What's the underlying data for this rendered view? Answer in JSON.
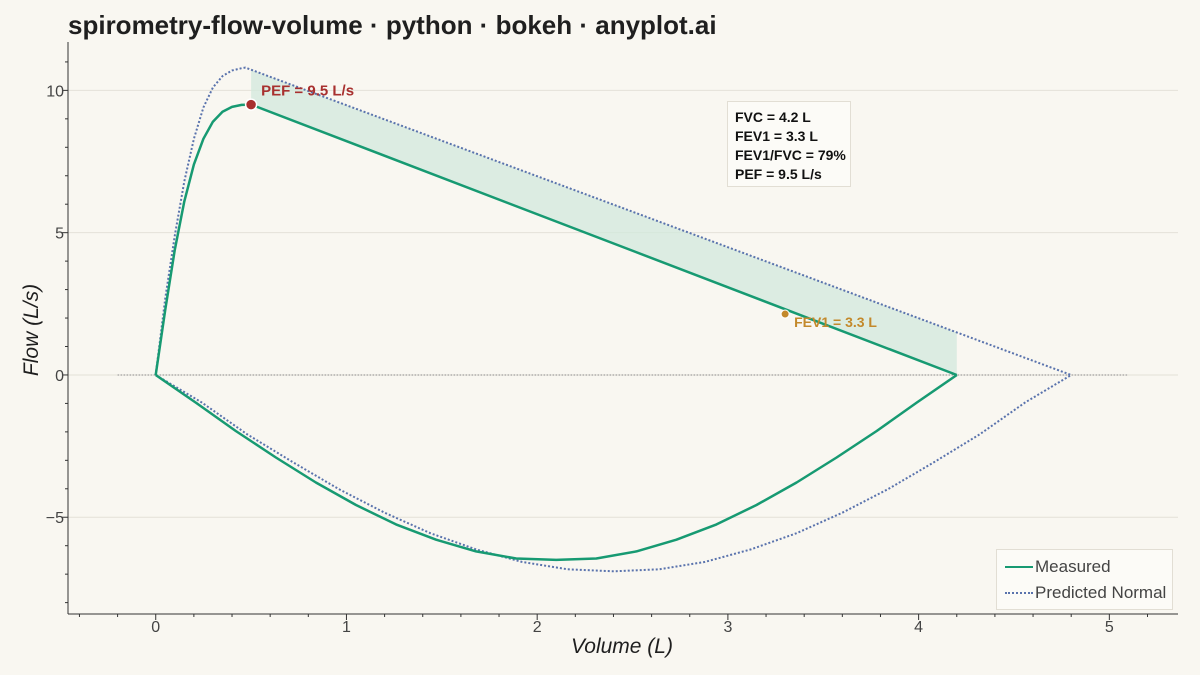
{
  "title": "spirometry-flow-volume · python · bokeh · anyplot.ai",
  "colors": {
    "measured": "#179a72",
    "predicted": "#5a73ad",
    "fill": "#d2e8dc",
    "pef": "#a8302f",
    "fev1": "#c3892b",
    "grid": "#e4e1d8",
    "background": "#f9f7f1"
  },
  "stats": {
    "fvc": "FVC = 4.2 L",
    "fev1": "FEV1 = 3.3 L",
    "ratio": "FEV1/FVC = 79%",
    "pef": "PEF = 9.5 L/s"
  },
  "annotations": {
    "pef_label": "PEF = 9.5 L/s",
    "fev1_label": "FEV1 = 3.3 L"
  },
  "legend": {
    "measured": "Measured",
    "predicted": "Predicted Normal",
    "position": "bottom-right"
  },
  "chart_data": {
    "type": "line",
    "xlabel": "Volume (L)",
    "ylabel": "Flow (L/s)",
    "xlim": [
      -0.46,
      5.36
    ],
    "ylim": [
      -8.4,
      11.7
    ],
    "xticks": [
      0,
      1,
      2,
      3,
      4,
      5
    ],
    "yticks": [
      -5,
      0,
      5,
      10
    ],
    "x_tick_labels": [
      "0",
      "1",
      "2",
      "3",
      "4",
      "5"
    ],
    "y_tick_labels": [
      "−5",
      "0",
      "5",
      "10"
    ],
    "grid": "horizontal",
    "legend_position": "bottom-right",
    "series": [
      {
        "name": "Measured",
        "expiratory": [
          [
            0,
            0
          ],
          [
            0.05,
            2.3
          ],
          [
            0.1,
            4.4
          ],
          [
            0.15,
            6.1
          ],
          [
            0.2,
            7.4
          ],
          [
            0.25,
            8.3
          ],
          [
            0.3,
            8.9
          ],
          [
            0.35,
            9.25
          ],
          [
            0.4,
            9.42
          ],
          [
            0.45,
            9.49
          ],
          [
            0.5,
            9.5
          ],
          [
            4.2,
            0
          ]
        ],
        "inspiratory": [
          [
            0,
            0
          ],
          [
            0.21,
            -0.97
          ],
          [
            0.42,
            -1.97
          ],
          [
            0.63,
            -2.9
          ],
          [
            0.84,
            -3.78
          ],
          [
            1.05,
            -4.57
          ],
          [
            1.26,
            -5.25
          ],
          [
            1.47,
            -5.79
          ],
          [
            1.68,
            -6.2
          ],
          [
            1.89,
            -6.45
          ],
          [
            2.1,
            -6.5
          ],
          [
            2.31,
            -6.45
          ],
          [
            2.52,
            -6.2
          ],
          [
            2.73,
            -5.79
          ],
          [
            2.94,
            -5.25
          ],
          [
            3.15,
            -4.57
          ],
          [
            3.36,
            -3.78
          ],
          [
            3.57,
            -2.9
          ],
          [
            3.78,
            -1.97
          ],
          [
            3.99,
            -0.97
          ],
          [
            4.2,
            0
          ]
        ]
      },
      {
        "name": "Predicted Normal",
        "expiratory": [
          [
            0,
            0
          ],
          [
            0.05,
            2.7
          ],
          [
            0.1,
            4.9
          ],
          [
            0.15,
            6.8
          ],
          [
            0.2,
            8.3
          ],
          [
            0.25,
            9.4
          ],
          [
            0.3,
            10.1
          ],
          [
            0.35,
            10.5
          ],
          [
            0.4,
            10.7
          ],
          [
            0.45,
            10.78
          ],
          [
            0.47,
            10.8
          ],
          [
            4.8,
            0
          ]
        ],
        "inspiratory": [
          [
            0,
            0
          ],
          [
            0.24,
            -0.96
          ],
          [
            0.48,
            -2.09
          ],
          [
            0.72,
            -3.07
          ],
          [
            0.96,
            -4.01
          ],
          [
            1.2,
            -4.84
          ],
          [
            1.44,
            -5.56
          ],
          [
            1.68,
            -6.13
          ],
          [
            1.92,
            -6.57
          ],
          [
            2.16,
            -6.83
          ],
          [
            2.4,
            -6.9
          ],
          [
            2.64,
            -6.83
          ],
          [
            2.88,
            -6.57
          ],
          [
            3.12,
            -6.13
          ],
          [
            3.36,
            -5.56
          ],
          [
            3.6,
            -4.84
          ],
          [
            3.84,
            -4.01
          ],
          [
            4.08,
            -3.07
          ],
          [
            4.32,
            -2.09
          ],
          [
            4.56,
            -0.96
          ],
          [
            4.8,
            0
          ]
        ]
      }
    ],
    "shaded_region": {
      "x_from": 0.5,
      "x_to": 4.2,
      "between": "Predicted Normal and Measured expiratory"
    },
    "points": [
      {
        "name": "PEF",
        "x": 0.5,
        "y": 9.5,
        "label": "PEF = 9.5 L/s"
      },
      {
        "name": "FEV1",
        "x": 3.3,
        "y": 2.14,
        "label": "FEV1 = 3.3 L"
      }
    ],
    "zero_line": {
      "y": 0,
      "x_from": -0.2,
      "x_to": 5.1
    }
  }
}
